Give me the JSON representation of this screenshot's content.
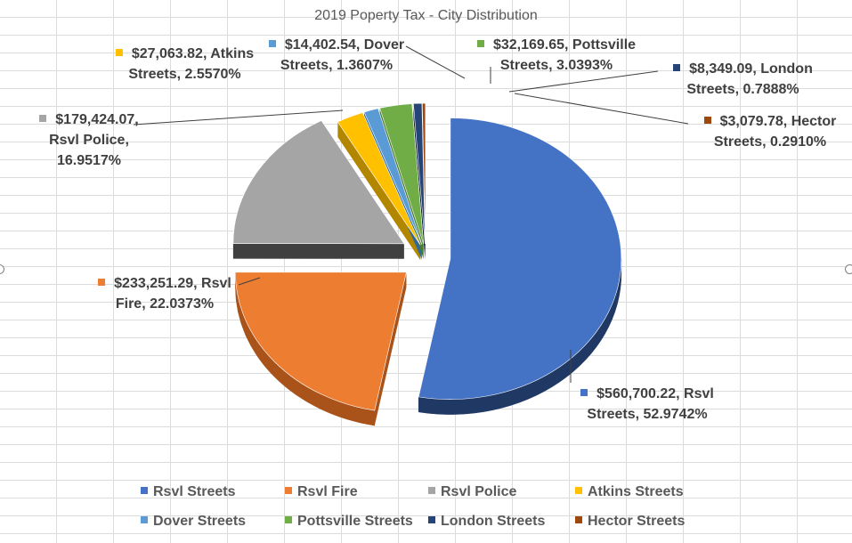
{
  "chart_data": {
    "type": "pie",
    "title": "2019 Poperty Tax - City Distribution",
    "three_d": true,
    "exploded": true,
    "legend_position": "bottom",
    "slices": [
      {
        "name": "Rsvl Streets",
        "value": 560700.22,
        "value_label": "$560,700.22",
        "percent_label": "52.9742%",
        "color": "#4472C4",
        "side_color": "#1F3864",
        "label_lines": [
          "$560,700.22, Rsvl",
          "Streets, 52.9742%"
        ]
      },
      {
        "name": "Rsvl Fire",
        "value": 233251.29,
        "value_label": "$233,251.29",
        "percent_label": "22.0373%",
        "color": "#ED7D31",
        "side_color": "#A9531B",
        "label_lines": [
          "$233,251.29, Rsvl",
          "Fire, 22.0373%"
        ]
      },
      {
        "name": "Rsvl Police",
        "value": 179424.07,
        "value_label": "$179,424.07",
        "percent_label": "16.9517%",
        "color": "#A5A5A5",
        "side_color": "#404040",
        "label_lines": [
          "$179,424.07,",
          "Rsvl Police,",
          "16.9517%"
        ]
      },
      {
        "name": "Atkins Streets",
        "value": 27063.82,
        "value_label": "$27,063.82",
        "percent_label": "2.5570%",
        "color": "#FFC000",
        "side_color": "#B38600",
        "label_lines": [
          "$27,063.82, Atkins",
          "Streets, 2.5570%"
        ]
      },
      {
        "name": "Dover Streets",
        "value": 14402.54,
        "value_label": "$14,402.54",
        "percent_label": "1.3607%",
        "color": "#5B9BD5",
        "side_color": "#2E6A9E",
        "label_lines": [
          "$14,402.54, Dover",
          "Streets, 1.3607%"
        ]
      },
      {
        "name": "Pottsville Streets",
        "value": 32169.65,
        "value_label": "$32,169.65",
        "percent_label": "3.0393%",
        "color": "#70AD47",
        "side_color": "#4A7A2C",
        "label_lines": [
          "$32,169.65, Pottsville",
          "Streets, 3.0393%"
        ]
      },
      {
        "name": "London Streets",
        "value": 8349.09,
        "value_label": "$8,349.09",
        "percent_label": "0.7888%",
        "color": "#264478",
        "side_color": "#13223C",
        "label_lines": [
          "$8,349.09, London",
          "Streets, 0.7888%"
        ]
      },
      {
        "name": "Hector Streets",
        "value": 3079.78,
        "value_label": "$3,079.78",
        "percent_label": "0.2910%",
        "color": "#9E480E",
        "side_color": "#5E2A08",
        "label_lines": [
          "$3,079.78, Hector",
          "Streets, 0.2910%"
        ]
      }
    ]
  }
}
